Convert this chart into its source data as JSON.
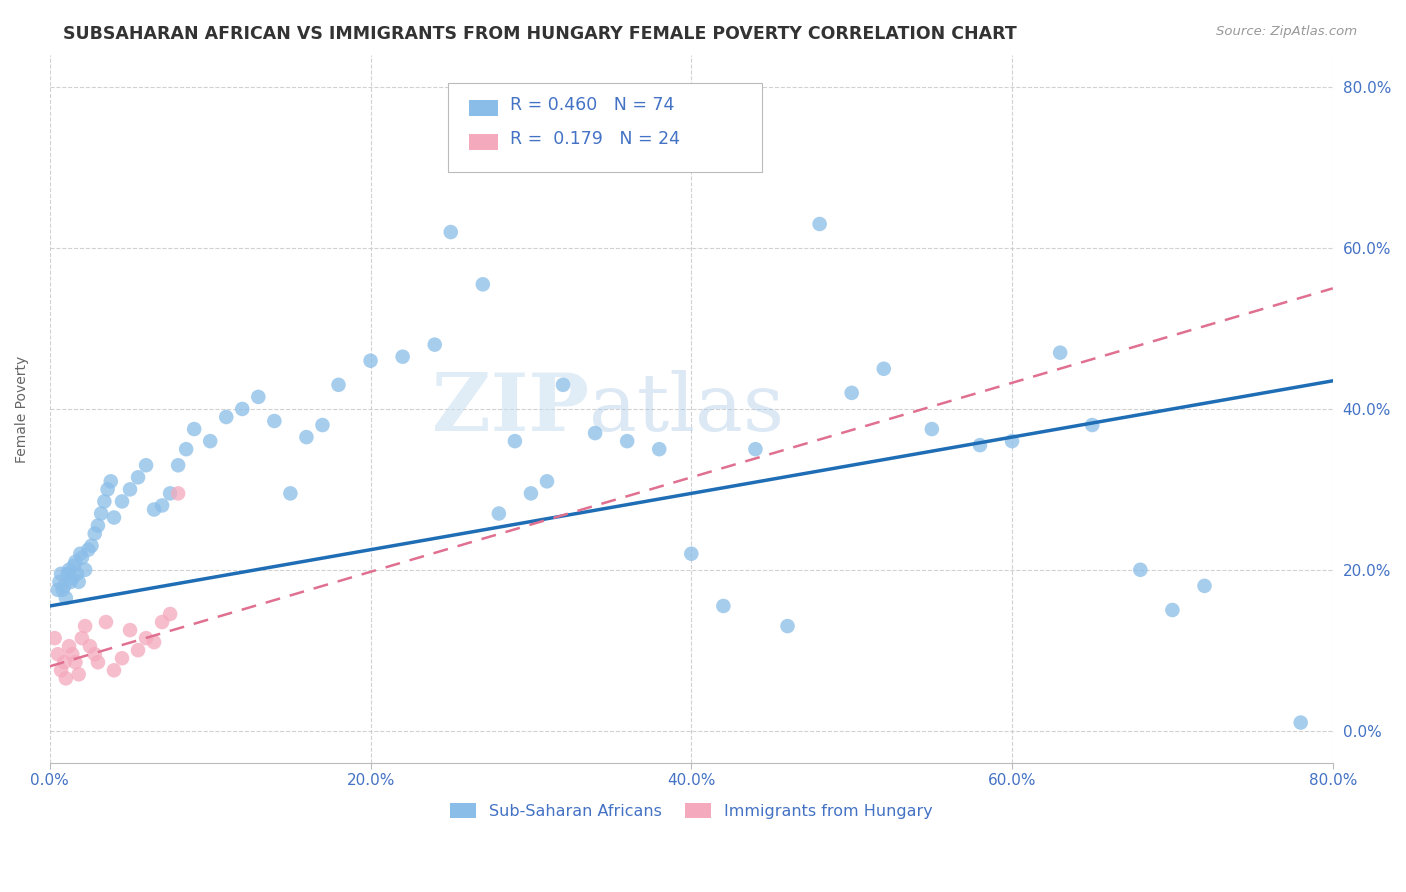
{
  "title": "SUBSAHARAN AFRICAN VS IMMIGRANTS FROM HUNGARY FEMALE POVERTY CORRELATION CHART",
  "source": "Source: ZipAtlas.com",
  "ylabel": "Female Poverty",
  "legend1_label": "Sub-Saharan Africans",
  "legend2_label": "Immigrants from Hungary",
  "R1": 0.46,
  "N1": 74,
  "R2": 0.179,
  "N2": 24,
  "color_blue": "#8abde8",
  "color_blue_line": "#1f6eb5",
  "color_pink": "#f4a9bc",
  "color_pink_line": "#e07090",
  "background": "#ffffff",
  "watermark_zip": "ZIP",
  "watermark_atlas": "atlas",
  "blue_x": [
    0.5,
    0.6,
    0.7,
    0.8,
    0.9,
    1.0,
    1.1,
    1.2,
    1.3,
    1.4,
    1.5,
    1.6,
    1.7,
    1.8,
    1.9,
    2.0,
    2.2,
    2.4,
    2.6,
    2.8,
    3.0,
    3.2,
    3.4,
    3.6,
    3.8,
    4.0,
    4.5,
    5.0,
    5.5,
    6.0,
    6.5,
    7.0,
    7.5,
    8.0,
    8.5,
    9.0,
    10.0,
    11.0,
    12.0,
    13.0,
    14.0,
    15.0,
    16.0,
    17.0,
    18.0,
    20.0,
    22.0,
    24.0,
    25.0,
    27.0,
    28.0,
    29.0,
    30.0,
    31.0,
    32.0,
    34.0,
    36.0,
    38.0,
    40.0,
    42.0,
    44.0,
    46.0,
    48.0,
    50.0,
    52.0,
    55.0,
    58.0,
    60.0,
    63.0,
    65.0,
    68.0,
    70.0,
    72.0,
    78.0
  ],
  "blue_y": [
    17.5,
    18.5,
    19.5,
    17.5,
    18.0,
    16.5,
    19.5,
    20.0,
    18.5,
    19.0,
    20.5,
    21.0,
    19.5,
    18.5,
    22.0,
    21.5,
    20.0,
    22.5,
    23.0,
    24.5,
    25.5,
    27.0,
    28.5,
    30.0,
    31.0,
    26.5,
    28.5,
    30.0,
    31.5,
    33.0,
    27.5,
    28.0,
    29.5,
    33.0,
    35.0,
    37.5,
    36.0,
    39.0,
    40.0,
    41.5,
    38.5,
    29.5,
    36.5,
    38.0,
    43.0,
    46.0,
    46.5,
    48.0,
    62.0,
    55.5,
    27.0,
    36.0,
    29.5,
    31.0,
    43.0,
    37.0,
    36.0,
    35.0,
    22.0,
    15.5,
    35.0,
    13.0,
    63.0,
    42.0,
    45.0,
    37.5,
    35.5,
    36.0,
    47.0,
    38.0,
    20.0,
    15.0,
    18.0,
    1.0
  ],
  "pink_x": [
    0.3,
    0.5,
    0.7,
    0.9,
    1.0,
    1.2,
    1.4,
    1.6,
    1.8,
    2.0,
    2.2,
    2.5,
    2.8,
    3.0,
    3.5,
    4.0,
    4.5,
    5.0,
    5.5,
    6.0,
    6.5,
    7.0,
    7.5,
    8.0
  ],
  "pink_y": [
    11.5,
    9.5,
    7.5,
    8.5,
    6.5,
    10.5,
    9.5,
    8.5,
    7.0,
    11.5,
    13.0,
    10.5,
    9.5,
    8.5,
    13.5,
    7.5,
    9.0,
    12.5,
    10.0,
    11.5,
    11.0,
    13.5,
    14.5,
    29.5
  ],
  "blue_line_x0": 0.0,
  "blue_line_x1": 80.0,
  "blue_line_y0": 15.5,
  "blue_line_y1": 43.5,
  "pink_line_x0": 0.0,
  "pink_line_x1": 80.0,
  "pink_line_y0": 8.0,
  "pink_line_y1": 55.0,
  "xmin": 0.0,
  "xmax": 80.0,
  "ymin": -4.0,
  "ymax": 84.0,
  "xticks": [
    0,
    20,
    40,
    60,
    80
  ],
  "xtick_labels": [
    "0.0%",
    "20.0%",
    "40.0%",
    "60.0%",
    "80.0%"
  ],
  "yticks": [
    0,
    20,
    40,
    60,
    80
  ],
  "ytick_labels": [
    "0.0%",
    "20.0%",
    "40.0%",
    "60.0%",
    "80.0%"
  ]
}
